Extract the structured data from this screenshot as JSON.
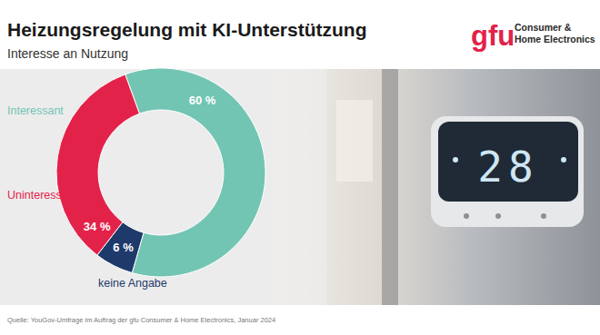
{
  "chart_data": {
    "type": "pie",
    "title": "Heizungsregelung mit KI-Unterstützung",
    "subtitle": "Interesse an Nutzung",
    "categories": [
      "Interessant",
      "keine Angabe",
      "Uninteressant"
    ],
    "values": [
      60,
      6,
      34
    ],
    "value_labels": [
      "60 %",
      "6 %",
      "34 %"
    ],
    "colors": [
      "#72c5b3",
      "#1e3a6b",
      "#e3224a"
    ],
    "data_labels": true,
    "source": "Quelle:  YouGov-Umfrage im Auftrag der gfu Consumer & Home Electronics, Januar 2024"
  },
  "logo": {
    "mark": "gfu",
    "lines": [
      "Consumer &",
      "Home Electronics"
    ]
  },
  "photo": {
    "display": "28"
  }
}
